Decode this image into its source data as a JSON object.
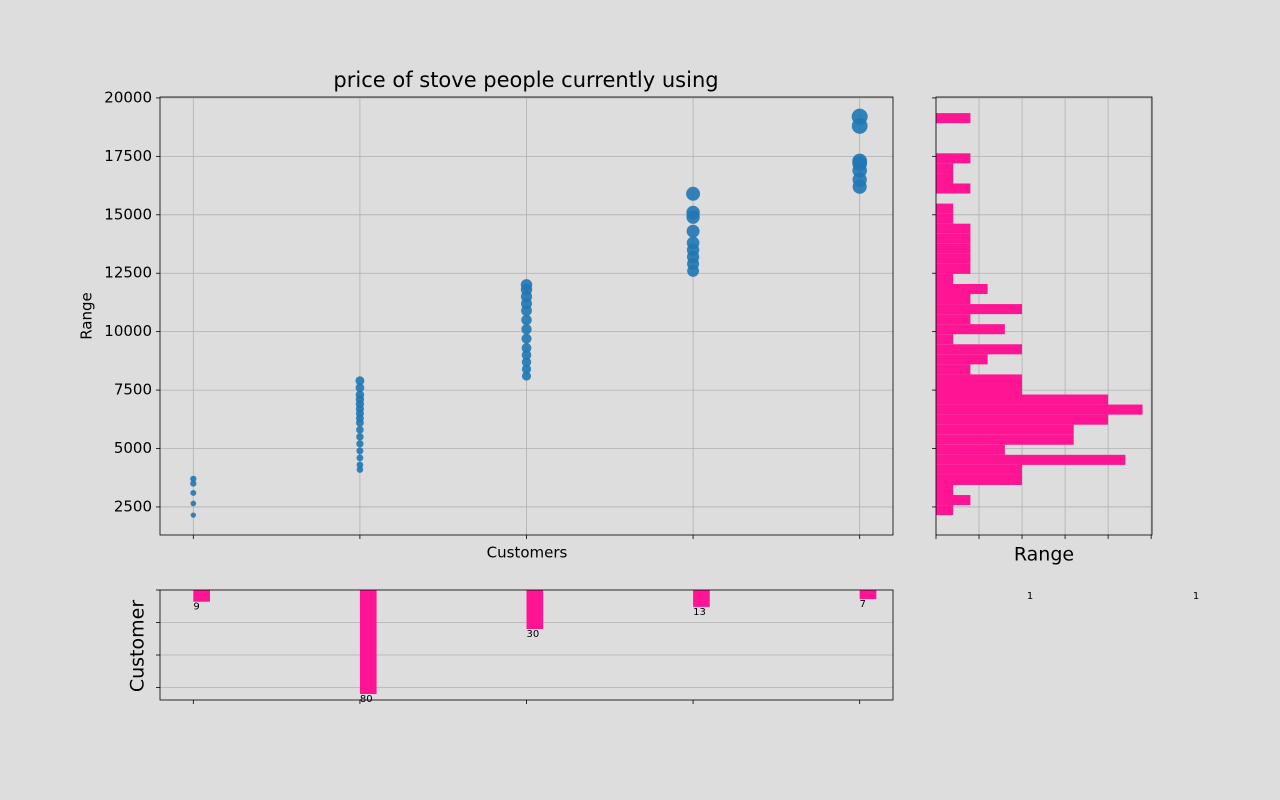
{
  "chart_data": [
    {
      "type": "scatter",
      "title": "price of stove people currently using",
      "xlabel": "Customers",
      "ylabel": "Range",
      "x": [
        0,
        0,
        0,
        0,
        0,
        1,
        1,
        1,
        1,
        1,
        1,
        1,
        1,
        1,
        1,
        1,
        1,
        1,
        1,
        1,
        1,
        2,
        2,
        2,
        2,
        2,
        2,
        2,
        2,
        2,
        2,
        2,
        2,
        2,
        3,
        3,
        3,
        3,
        3,
        3,
        3,
        3,
        3,
        4,
        4,
        4,
        4,
        4,
        4,
        4
      ],
      "values": [
        2150,
        2650,
        3100,
        3500,
        3700,
        4100,
        4300,
        4600,
        4900,
        5200,
        5500,
        5800,
        6100,
        6300,
        6500,
        6700,
        6900,
        7100,
        7300,
        7600,
        7900,
        8100,
        8400,
        8700,
        9000,
        9300,
        9700,
        10100,
        10500,
        10900,
        11200,
        11500,
        11800,
        12000,
        12600,
        12900,
        13200,
        13500,
        13800,
        14300,
        14900,
        15100,
        15900,
        16200,
        16500,
        16900,
        17200,
        17300,
        18800,
        19200
      ],
      "color": "#1f77b4",
      "xlim": [
        -0.2,
        4.2
      ],
      "ylim": [
        1300,
        20040
      ],
      "xticks": [
        0,
        1,
        2,
        3,
        4
      ],
      "yticks": [
        2500,
        5000,
        7500,
        10000,
        12500,
        15000,
        17500,
        20000
      ],
      "grid": true
    },
    {
      "type": "histogram",
      "orientation": "horizontal",
      "xlabel": "Range",
      "bins": [
        2150,
        2580,
        3010,
        3440,
        3870,
        4300,
        4730,
        5160,
        5590,
        6020,
        6450,
        6880,
        7310,
        7740,
        8170,
        8600,
        9030,
        9460,
        9890,
        10320,
        10750,
        11180,
        11610,
        12040,
        12470,
        12900,
        13330,
        13760,
        14190,
        14620,
        15050,
        15480,
        15910,
        16340,
        16770,
        17200,
        17630,
        18060,
        18490,
        18920,
        19350
      ],
      "values": [
        1,
        2,
        1,
        5,
        5,
        11,
        4,
        8,
        8,
        10,
        12,
        10,
        5,
        5,
        2,
        3,
        5,
        1,
        4,
        2,
        5,
        2,
        3,
        1,
        2,
        2,
        2,
        2,
        2,
        1,
        1,
        0,
        2,
        1,
        1,
        2,
        0,
        0,
        0,
        2
      ],
      "color": "#ff1493",
      "xlim": [
        0,
        12.55
      ],
      "ylim": [
        1300,
        20040
      ],
      "xticks": [
        0,
        2.5,
        5,
        7.5,
        10,
        12.5
      ],
      "yticks": [
        2500,
        5000,
        7500,
        10000,
        12500,
        15000,
        17500,
        20000
      ],
      "grid": true,
      "annotations": [
        "1",
        "1"
      ]
    },
    {
      "type": "bar",
      "ylabel": "Customer",
      "x": [
        0,
        1,
        2,
        3,
        4
      ],
      "values": [
        9,
        80,
        30,
        13,
        7
      ],
      "color": "#ff1493",
      "xlim": [
        -0.2,
        4.2
      ],
      "ylim": [
        0,
        84.6
      ],
      "yinverted": true,
      "xticks": [
        0,
        1,
        2,
        3,
        4
      ],
      "yticks": [
        0,
        25,
        50,
        75
      ],
      "grid": true
    }
  ]
}
